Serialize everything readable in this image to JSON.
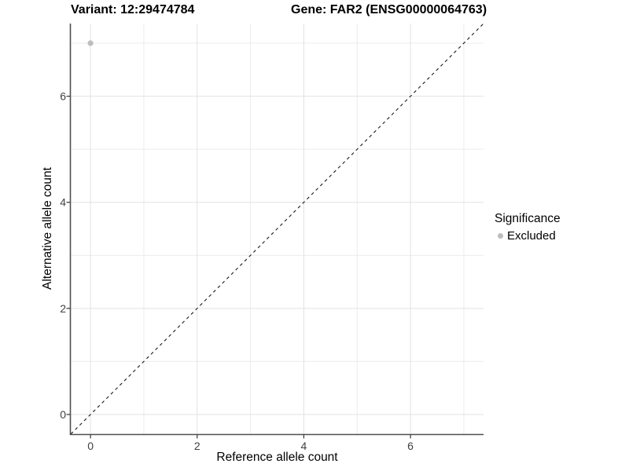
{
  "figure": {
    "title_left": "Variant: 12:29474784",
    "title_right": "Gene: FAR2 (ENSG00000064763)",
    "x_axis_title": "Reference allele count",
    "y_axis_title": "Alternative allele count",
    "legend": {
      "title": "Significance",
      "items": [
        {
          "label": "Excluded",
          "color": "#bdbdbd"
        }
      ]
    }
  },
  "chart_data": {
    "type": "scatter",
    "title": "Variant: 12:29474784",
    "subtitle": "Gene: FAR2 (ENSG00000064763)",
    "xlabel": "Reference allele count",
    "ylabel": "Alternative allele count",
    "xlim": [
      -0.37,
      7.37
    ],
    "ylim": [
      -0.37,
      7.37
    ],
    "x_ticks": [
      0,
      2,
      4,
      6
    ],
    "x_minor_ticks": [
      1,
      3,
      5,
      7
    ],
    "y_ticks": [
      0,
      2,
      4,
      6
    ],
    "y_minor_ticks": [
      1,
      3,
      5,
      7
    ],
    "grid": "major+minor",
    "legend_title": "Significance",
    "legend_position": "right",
    "reference_line": {
      "type": "identity",
      "style": "dashed",
      "color": "#1a1a1a"
    },
    "series": [
      {
        "name": "Excluded",
        "color": "#bdbdbd",
        "marker": "circle",
        "points": [
          {
            "x": 0,
            "y": 7
          }
        ]
      }
    ]
  },
  "colors": {
    "background": "#ffffff",
    "grid_major": "#e2e2e2",
    "grid_minor": "#ececec",
    "axis_line": "#4f4f4f",
    "tick_mark": "#333333",
    "tick_label": "#404040",
    "point": "#bdbdbd"
  }
}
